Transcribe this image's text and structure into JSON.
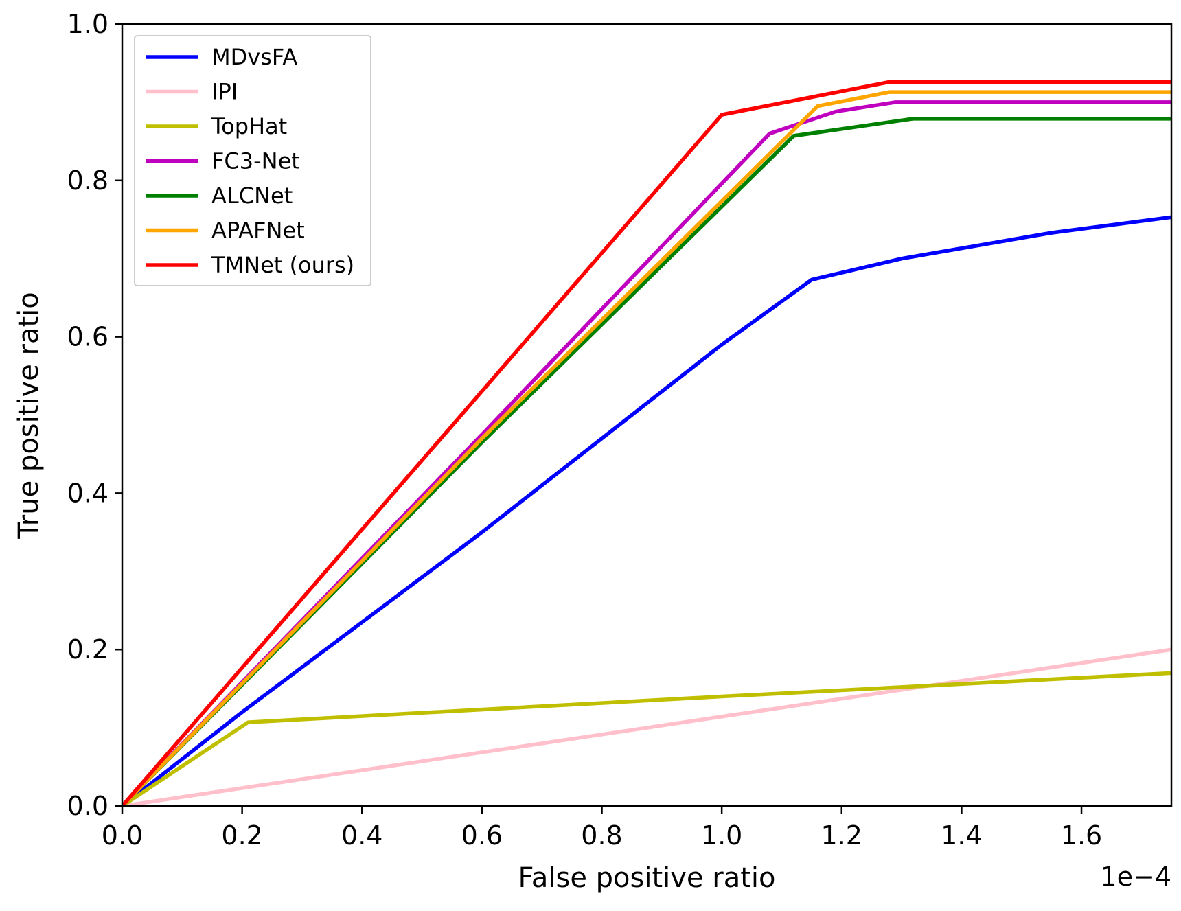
{
  "chart_data": {
    "type": "line",
    "title": "",
    "xlabel": "False positive ratio",
    "ylabel": "True positive ratio",
    "x_offset_label": "1e−4",
    "xlim": [
      0.0,
      1.75
    ],
    "ylim": [
      0.0,
      1.0
    ],
    "xticks": [
      0.0,
      0.2,
      0.4,
      0.6,
      0.8,
      1.0,
      1.2,
      1.4,
      1.6
    ],
    "xtick_labels": [
      "0.0",
      "0.2",
      "0.4",
      "0.6",
      "0.8",
      "1.0",
      "1.2",
      "1.4",
      "1.6"
    ],
    "yticks": [
      0.0,
      0.2,
      0.4,
      0.6,
      0.8,
      1.0
    ],
    "ytick_labels": [
      "0.0",
      "0.2",
      "0.4",
      "0.6",
      "0.8",
      "1.0"
    ],
    "grid": false,
    "legend_position": "top-left",
    "series": [
      {
        "name": "MDvsFA",
        "color": "#0000ff",
        "x": [
          0.0,
          0.2,
          0.6,
          1.0,
          1.15,
          1.3,
          1.55,
          1.75
        ],
        "y": [
          0.0,
          0.12,
          0.35,
          0.59,
          0.673,
          0.7,
          0.733,
          0.753
        ]
      },
      {
        "name": "IPI",
        "color": "#ffc0cb",
        "x": [
          0.0,
          1.75
        ],
        "y": [
          0.0,
          0.2
        ]
      },
      {
        "name": "TopHat",
        "color": "#bfbf00",
        "x": [
          0.0,
          0.21,
          1.0,
          1.75
        ],
        "y": [
          0.0,
          0.107,
          0.14,
          0.17
        ]
      },
      {
        "name": "FC3-Net",
        "color": "#bf00bf",
        "x": [
          0.0,
          0.6,
          0.98,
          1.08,
          1.19,
          1.29,
          1.75
        ],
        "y": [
          0.0,
          0.475,
          0.78,
          0.86,
          0.888,
          0.9,
          0.9
        ]
      },
      {
        "name": "ALCNet",
        "color": "#008000",
        "x": [
          0.0,
          0.6,
          1.12,
          1.32,
          1.75
        ],
        "y": [
          0.0,
          0.465,
          0.857,
          0.879,
          0.879
        ]
      },
      {
        "name": "APAFNet",
        "color": "#ffa500",
        "x": [
          0.0,
          0.6,
          1.16,
          1.28,
          1.75
        ],
        "y": [
          0.0,
          0.47,
          0.895,
          0.913,
          0.913
        ]
      },
      {
        "name": "TMNet (ours)",
        "color": "#ff0000",
        "x": [
          0.0,
          1.0,
          1.28,
          1.75
        ],
        "y": [
          0.0,
          0.884,
          0.926,
          0.926
        ]
      }
    ]
  }
}
